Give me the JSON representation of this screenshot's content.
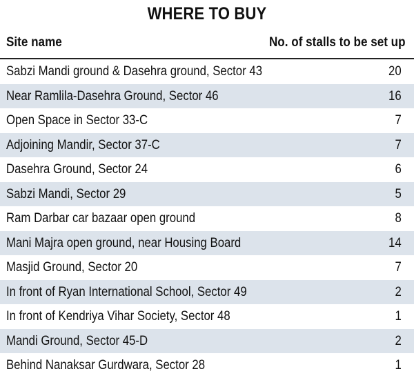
{
  "title": "WHERE TO BUY",
  "columns": {
    "site": "Site name",
    "stalls": "No. of stalls to be set up"
  },
  "rows": [
    {
      "site": "Sabzi Mandi ground & Dasehra ground, Sector 43",
      "stalls": "20"
    },
    {
      "site": "Near Ramlila-Dasehra Ground, Sector 46",
      "stalls": "16"
    },
    {
      "site": "Open Space in Sector 33-C",
      "stalls": "7"
    },
    {
      "site": "Adjoining Mandir, Sector 37-C",
      "stalls": "7"
    },
    {
      "site": "Dasehra Ground, Sector 24",
      "stalls": "6"
    },
    {
      "site": "Sabzi Mandi, Sector 29",
      "stalls": "5"
    },
    {
      "site": "Ram Darbar car bazaar open ground",
      "stalls": "8"
    },
    {
      "site": "Mani Majra open ground, near Housing Board",
      "stalls": "14"
    },
    {
      "site": "Masjid Ground, Sector 20",
      "stalls": "7"
    },
    {
      "site": "In front of Ryan International School, Sector 49",
      "stalls": "2"
    },
    {
      "site": "In front of Kendriya Vihar Society, Sector 48",
      "stalls": "1"
    },
    {
      "site": "Mandi Ground, Sector 45-D",
      "stalls": "2"
    },
    {
      "site": "Behind Nanaksar Gurdwara, Sector 28",
      "stalls": "1"
    }
  ]
}
